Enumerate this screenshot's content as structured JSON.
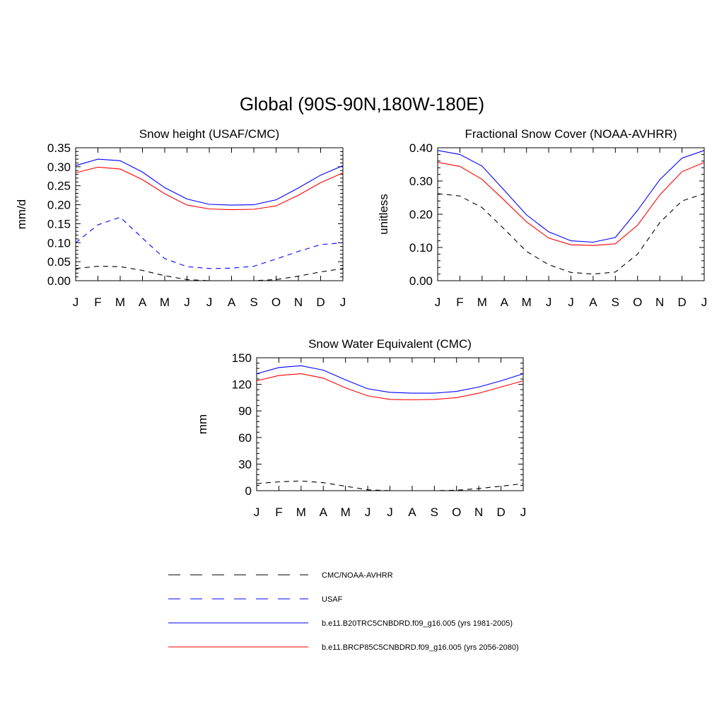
{
  "figure": {
    "title": "Global (90S-90N,180W-180E)"
  },
  "legend": [
    {
      "label": "CMC/NOAA-AVHRR",
      "color": "#000000",
      "dash": "dashed"
    },
    {
      "label": "USAF",
      "color": "#0000ff",
      "dash": "dashed"
    },
    {
      "label": "b.e11.B20TRC5CNBDRD.f09_g16.005 (yrs 1981-2005)",
      "color": "#0000ff",
      "dash": "solid"
    },
    {
      "label": "b.e11.BRCP85C5CNBDRD.f09_g16.005 (yrs 2056-2080)",
      "color": "#ff0000",
      "dash": "solid"
    }
  ],
  "chart_data": [
    {
      "type": "line",
      "title": "Snow height (USAF/CMC)",
      "xlabel": "",
      "ylabel": "mm/d",
      "categories": [
        "J",
        "F",
        "M",
        "A",
        "M",
        "J",
        "J",
        "A",
        "S",
        "O",
        "N",
        "D",
        "J"
      ],
      "ylim": [
        0,
        0.35
      ],
      "yticks": [
        "0.00",
        "0.05",
        "0.10",
        "0.15",
        "0.20",
        "0.25",
        "0.30",
        "0.35"
      ],
      "series": [
        {
          "name": "CMC/NOAA-AVHRR",
          "color": "#000000",
          "dash": "dashed",
          "values": [
            0.032,
            0.038,
            0.037,
            0.027,
            0.013,
            0.003,
            0.0,
            0.0,
            0.0,
            0.003,
            0.012,
            0.023,
            0.032
          ]
        },
        {
          "name": "USAF",
          "color": "#0000ff",
          "dash": "dashed",
          "values": [
            0.1,
            0.147,
            0.167,
            0.112,
            0.058,
            0.037,
            0.032,
            0.033,
            0.038,
            0.057,
            0.077,
            0.095,
            0.1
          ]
        },
        {
          "name": "b.e11.B20TRC5CNBDRD.f09_g16.005 (yrs 1981-2005)",
          "color": "#0000ff",
          "dash": "solid",
          "values": [
            0.303,
            0.32,
            0.316,
            0.286,
            0.245,
            0.215,
            0.201,
            0.199,
            0.2,
            0.213,
            0.244,
            0.278,
            0.303
          ]
        },
        {
          "name": "b.e11.BRCP85C5CNBDRD.f09_g16.005 (yrs 2056-2080)",
          "color": "#ff0000",
          "dash": "solid",
          "values": [
            0.284,
            0.299,
            0.294,
            0.266,
            0.229,
            0.199,
            0.189,
            0.187,
            0.188,
            0.197,
            0.225,
            0.258,
            0.284
          ]
        }
      ]
    },
    {
      "type": "line",
      "title": "Fractional Snow Cover (NOAA-AVHRR)",
      "xlabel": "",
      "ylabel": "unitless",
      "categories": [
        "J",
        "F",
        "M",
        "A",
        "M",
        "J",
        "J",
        "A",
        "S",
        "O",
        "N",
        "D",
        "J"
      ],
      "ylim": [
        0,
        0.4
      ],
      "yticks": [
        "0.00",
        "0.10",
        "0.20",
        "0.30",
        "0.40"
      ],
      "series": [
        {
          "name": "CMC/NOAA-AVHRR",
          "color": "#000000",
          "dash": "dashed",
          "values": [
            0.262,
            0.255,
            0.22,
            0.155,
            0.088,
            0.048,
            0.025,
            0.02,
            0.026,
            0.08,
            0.175,
            0.24,
            0.262
          ]
        },
        {
          "name": "b.e11.B20TRC5CNBDRD.f09_g16.005 (yrs 1981-2005)",
          "color": "#0000ff",
          "dash": "solid",
          "values": [
            0.392,
            0.38,
            0.345,
            0.272,
            0.198,
            0.147,
            0.12,
            0.116,
            0.13,
            0.212,
            0.304,
            0.369,
            0.392
          ]
        },
        {
          "name": "b.e11.BRCP85C5CNBDRD.f09_g16.005 (yrs 2056-2080)",
          "color": "#ff0000",
          "dash": "solid",
          "values": [
            0.356,
            0.344,
            0.305,
            0.242,
            0.177,
            0.128,
            0.108,
            0.106,
            0.111,
            0.167,
            0.258,
            0.328,
            0.356
          ]
        }
      ]
    },
    {
      "type": "line",
      "title": "Snow Water Equivalent (CMC)",
      "xlabel": "",
      "ylabel": "mm",
      "categories": [
        "J",
        "F",
        "M",
        "A",
        "M",
        "J",
        "J",
        "A",
        "S",
        "O",
        "N",
        "D",
        "J"
      ],
      "ylim": [
        0,
        150
      ],
      "yticks": [
        "0",
        "30",
        "60",
        "90",
        "120",
        "150"
      ],
      "series": [
        {
          "name": "CMC/NOAA-AVHRR",
          "color": "#000000",
          "dash": "dashed",
          "values": [
            8,
            10,
            11,
            9,
            5,
            1,
            0,
            0,
            0,
            0.5,
            2.5,
            5,
            8
          ]
        },
        {
          "name": "b.e11.B20TRC5CNBDRD.f09_g16.005 (yrs 1981-2005)",
          "color": "#0000ff",
          "dash": "solid",
          "values": [
            132,
            139,
            141,
            136,
            125,
            115,
            111,
            110,
            110,
            112,
            117,
            124,
            132
          ]
        },
        {
          "name": "b.e11.BRCP85C5CNBDRD.f09_g16.005 (yrs 2056-2080)",
          "color": "#ff0000",
          "dash": "solid",
          "values": [
            124,
            130,
            132,
            127,
            116,
            107,
            103,
            102.5,
            103,
            105,
            110,
            117,
            124
          ]
        }
      ]
    }
  ]
}
